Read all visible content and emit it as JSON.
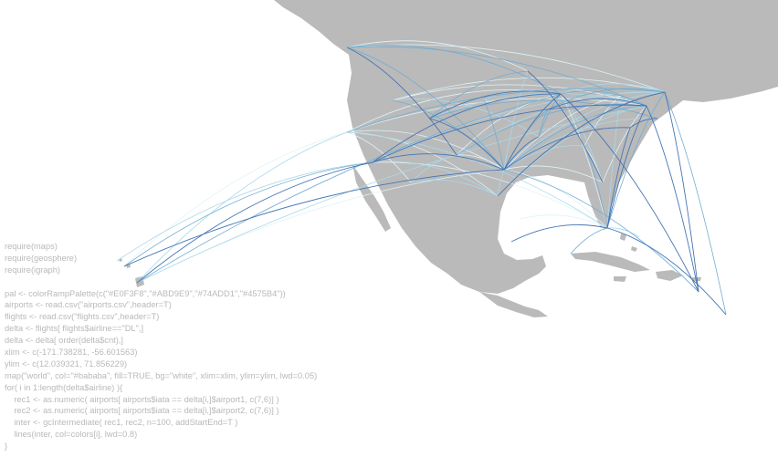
{
  "palette": [
    "#E0F3F8",
    "#ABD9E9",
    "#74ADD1",
    "#4575B4"
  ],
  "map": {
    "land_color": "#bababa",
    "background": "#ffffff"
  },
  "code": {
    "lines": [
      "require(maps)",
      "require(geosphere)",
      "require(igraph)",
      "",
      "pal <- colorRampPalette(c(\"#E0F3F8\",\"#ABD9E9\",\"#74ADD1\",\"#4575B4\"))",
      "airports <- read.csv(\"airports.csv\",header=T)",
      "flights <- read.csv(\"flights.csv\",header=T)",
      "delta <- flights[ flights$airline==\"DL\",]",
      "delta <- delta[ order(delta$cnt),]",
      "xlim <- c(-171.738281, -56.601563)",
      "ylim <- c(12.039321, 71.856229)",
      "map(\"world\", col=\"#bababa\", fill=TRUE, bg=\"white\", xlim=xlim, ylim=ylim, lwd=0.05)",
      "for( i in 1:length(delta$airline) ){",
      "    rec1 <- as.numeric( airports[ airports$iata == delta[i,]$airport1, c(7,6)] )",
      "    rec2 <- as.numeric( airports[ airports$iata == delta[i,]$airport2, c(7,6)] )",
      "    inter <- gcIntermediate( rec1, rec2, n=100, addStartEnd=T )",
      "    lines(inter, col=colors[i], lwd=0.8)",
      "}"
    ]
  }
}
